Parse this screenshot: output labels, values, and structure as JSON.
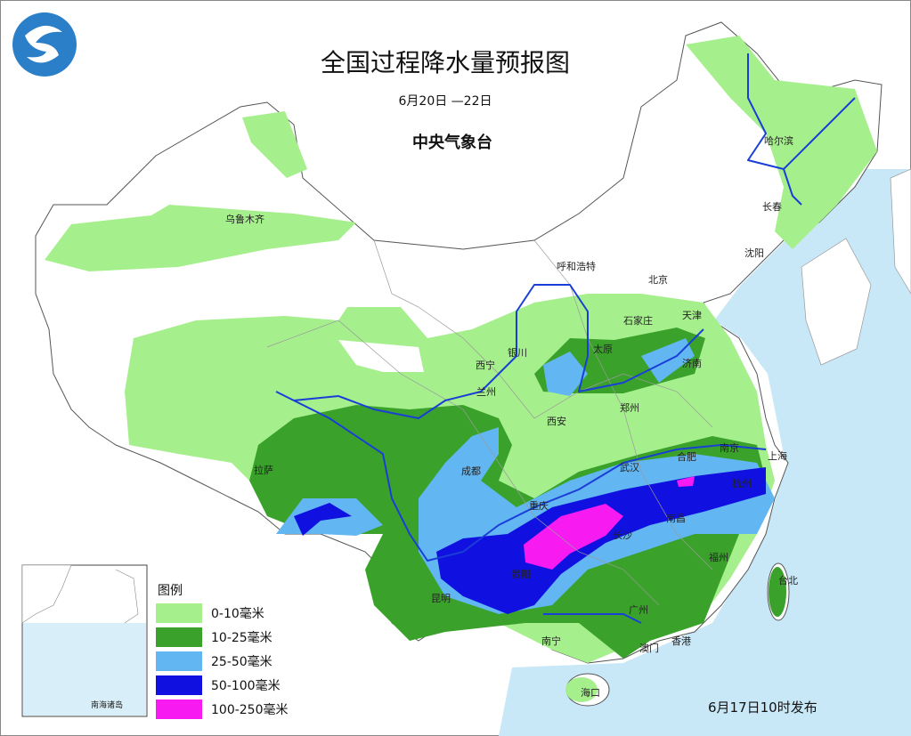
{
  "header": {
    "title": "全国过程降水量预报图",
    "period": "6月20日 —22日",
    "issuer": "中央气象台"
  },
  "cities": [
    "乌鲁木齐",
    "哈尔滨",
    "长春",
    "沈阳",
    "呼和浩特",
    "北京",
    "天津",
    "石家庄",
    "太原",
    "济南",
    "银川",
    "西宁",
    "兰州",
    "郑州",
    "西安",
    "南京",
    "上海",
    "合肥",
    "武汉",
    "杭州",
    "成都",
    "拉萨",
    "重庆",
    "南昌",
    "长沙",
    "福州",
    "贵阳",
    "台北",
    "昆明",
    "广州",
    "南宁",
    "澳门",
    "香港",
    "海口"
  ],
  "legend": {
    "title": "图例",
    "items": [
      {
        "label": "0-10毫米",
        "color": "#a6ef8d"
      },
      {
        "label": "10-25毫米",
        "color": "#3aa22b"
      },
      {
        "label": "25-50毫米",
        "color": "#62b6f2"
      },
      {
        "label": "50-100毫米",
        "color": "#1010e0"
      },
      {
        "label": "100-250毫米",
        "color": "#f71bf2"
      }
    ]
  },
  "inset": {
    "label": "南海诸岛"
  },
  "footer": {
    "issued": "6月17日10时发布"
  }
}
